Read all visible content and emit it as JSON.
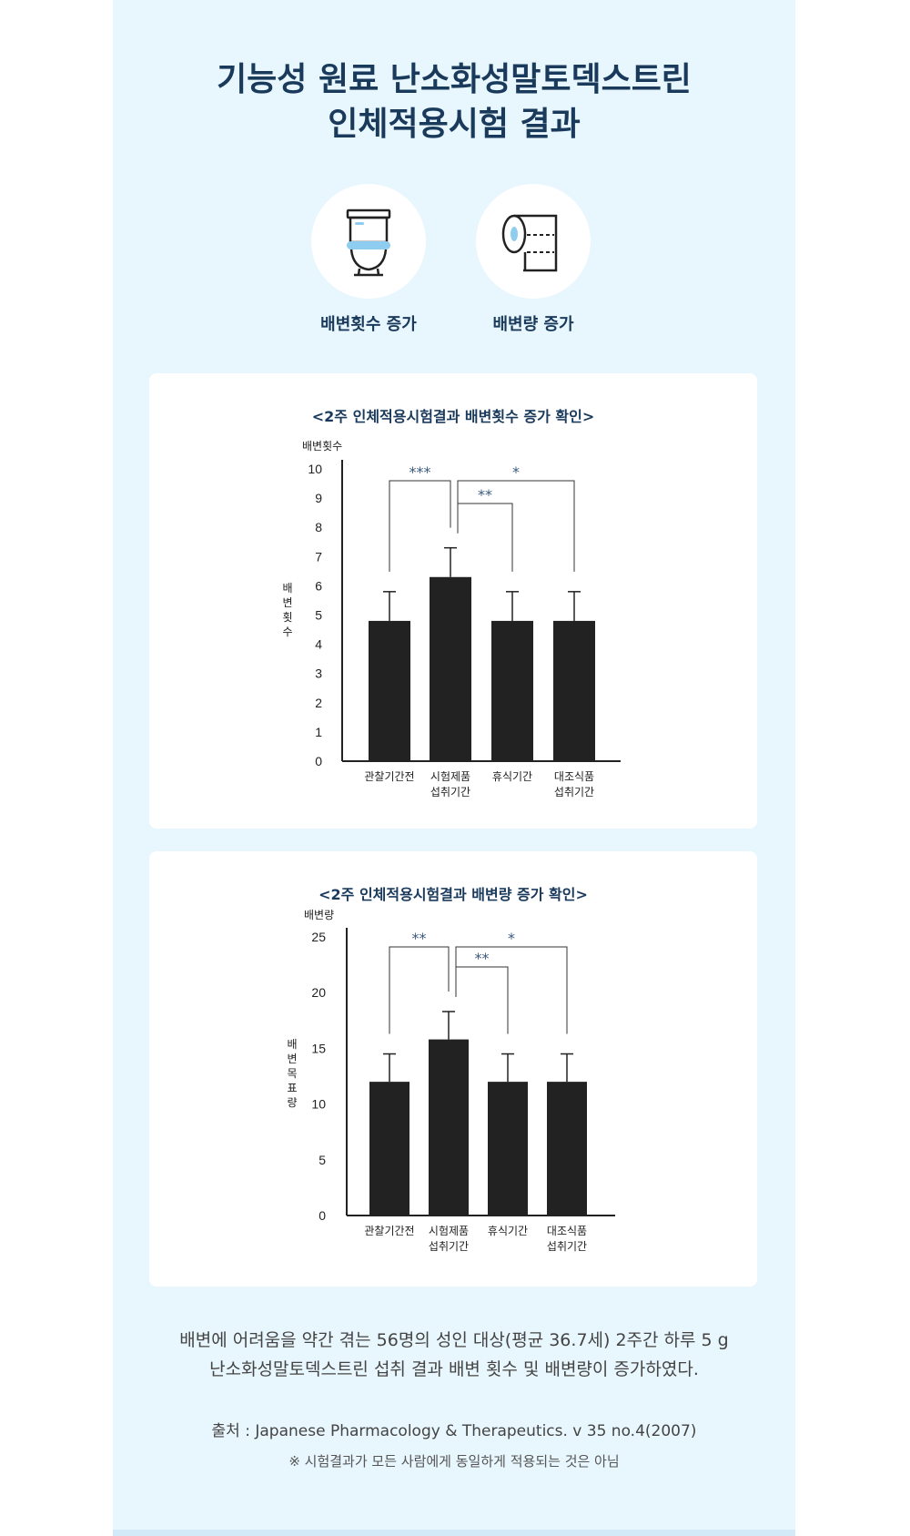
{
  "header": {
    "title_line1": "기능성 원료 난소화성말토덱스트린",
    "title_line2": "인체적용시험 결과"
  },
  "benefits": [
    {
      "icon": "toilet-icon",
      "label": "배변횟수 증가"
    },
    {
      "icon": "toilet-paper-icon",
      "label": "배변량 증가"
    }
  ],
  "colors": {
    "panel": "#e8f6fd",
    "title": "#1a3a5c",
    "bar": "#222222",
    "accent": "#8ecdf0",
    "star": "#3a5a80"
  },
  "chart_data": [
    {
      "type": "bar",
      "title": "<2주 인체적용시험결과 배변횟수 증가 확인>",
      "ylabel_top": "배변횟수",
      "ylabel_side": [
        "배",
        "변",
        "횟",
        "수"
      ],
      "categories": [
        [
          "관찰기간전"
        ],
        [
          "시험제품",
          "섭취기간"
        ],
        [
          "휴식기간"
        ],
        [
          "대조식품",
          "섭취기간"
        ]
      ],
      "values": [
        4.8,
        6.3,
        4.8,
        4.8
      ],
      "errors": [
        1.0,
        1.0,
        1.0,
        1.0
      ],
      "yticks": [
        "0",
        "1",
        "2",
        "3",
        "4",
        "5",
        "6",
        "7",
        "8",
        "9",
        "10"
      ],
      "ylim": [
        0,
        10
      ],
      "significance": [
        {
          "from": 0,
          "to": 1,
          "label": "***"
        },
        {
          "from": 1,
          "to": 3,
          "label": "*"
        },
        {
          "from": 1,
          "to": 2,
          "label": "**"
        }
      ]
    },
    {
      "type": "bar",
      "title": "<2주 인체적용시험결과 배변량 증가 확인>",
      "ylabel_top": "배변량",
      "ylabel_side": [
        "배",
        "변",
        "목",
        "표",
        "량"
      ],
      "categories": [
        [
          "관찰기간전"
        ],
        [
          "시험제품",
          "섭취기간"
        ],
        [
          "휴식기간"
        ],
        [
          "대조식품",
          "섭취기간"
        ]
      ],
      "values": [
        12,
        15.8,
        12,
        12
      ],
      "errors": [
        2.5,
        2.5,
        2.5,
        2.5
      ],
      "yticks": [
        "0",
        "5",
        "10",
        "15",
        "20",
        "25"
      ],
      "ylim": [
        0,
        25
      ],
      "significance": [
        {
          "from": 0,
          "to": 1,
          "label": "**"
        },
        {
          "from": 1,
          "to": 3,
          "label": "*"
        },
        {
          "from": 1,
          "to": 2,
          "label": "**"
        }
      ]
    }
  ],
  "description": {
    "line1": "배변에 어려움을 약간 겪는 56명의 성인 대상(평균 36.7세) 2주간 하루 5 g",
    "line2": "난소화성말토덱스트린 섭취 결과 배변 횟수 및 배변량이 증가하였다."
  },
  "source": "출처 : Japanese Pharmacology & Therapeutics. v 35 no.4(2007)",
  "note": "※ 시험결과가 모든 사람에게 동일하게 적용되는 것은 아님"
}
